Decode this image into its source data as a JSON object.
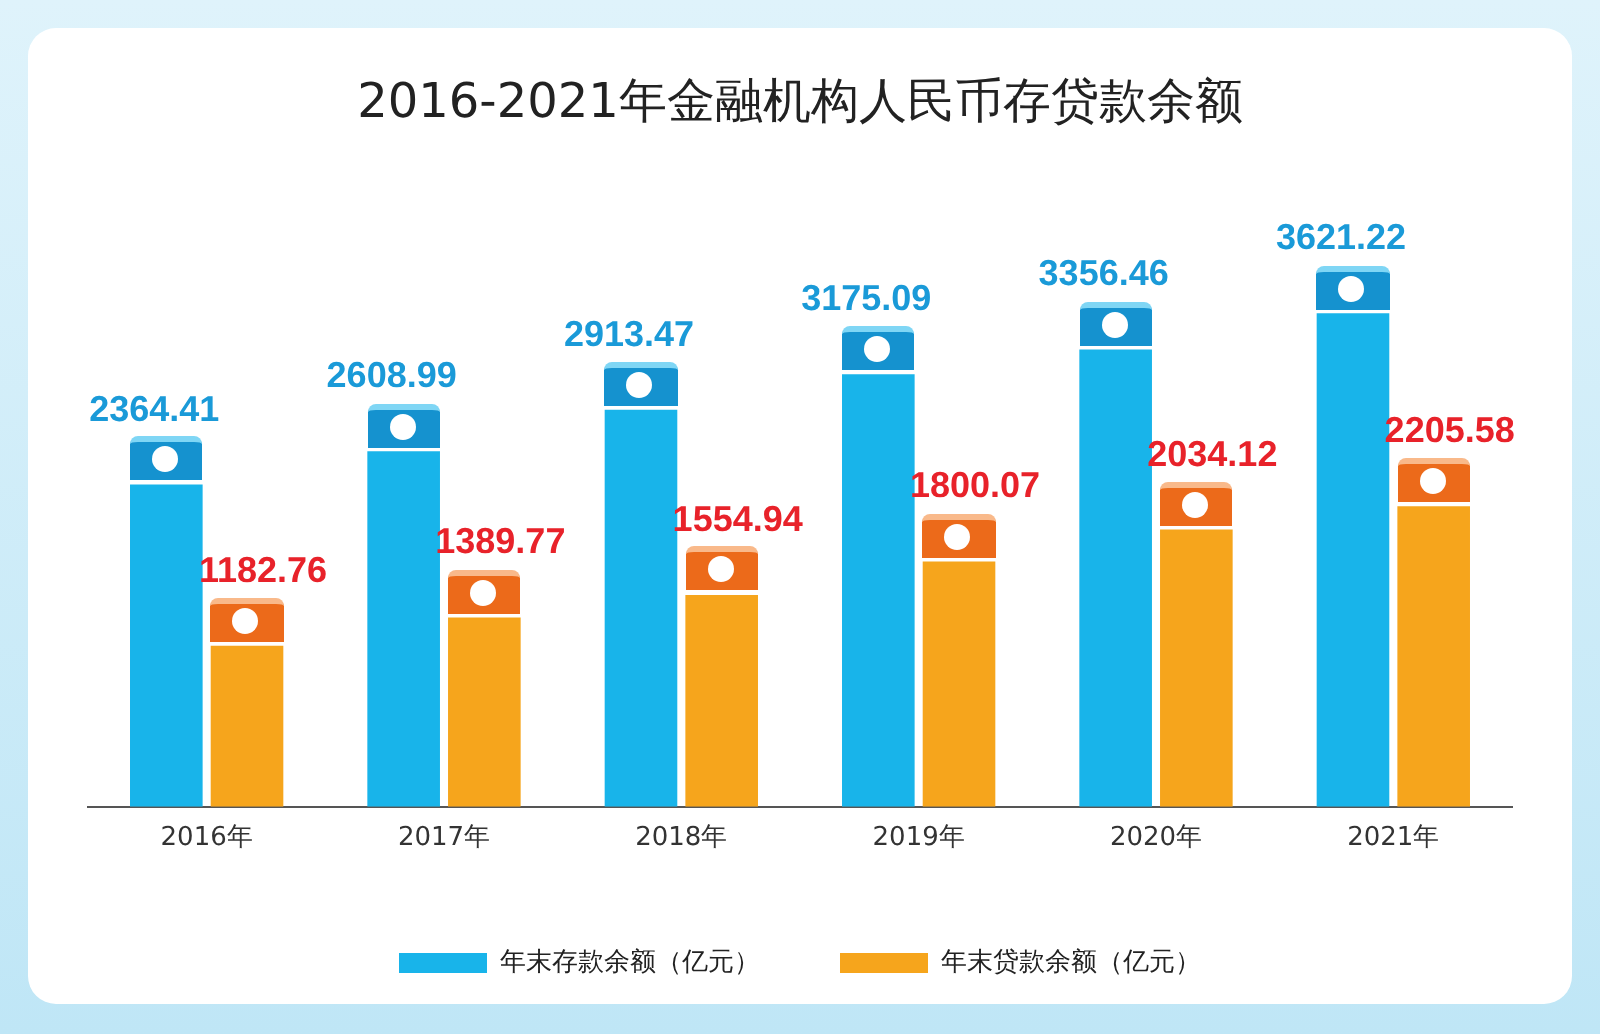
{
  "chart_data": {
    "type": "bar",
    "title": "2016-2021年金融机构人民币存贷款余额",
    "categories": [
      "2016年",
      "2017年",
      "2018年",
      "2019年",
      "2020年",
      "2021年"
    ],
    "data_labels": true,
    "legend": "bottom",
    "grid": false,
    "series": [
      {
        "name": "年末存款余额（亿元）",
        "color": "#18b4ea",
        "values": [
          2364.41,
          2608.99,
          2913.47,
          3175.09,
          3356.46,
          3621.22
        ]
      },
      {
        "name": "年末贷款余额（亿元）",
        "color": "#f6a51c",
        "values": [
          1182.76,
          1389.77,
          1554.94,
          1800.07,
          2034.12,
          2205.58
        ]
      }
    ]
  }
}
